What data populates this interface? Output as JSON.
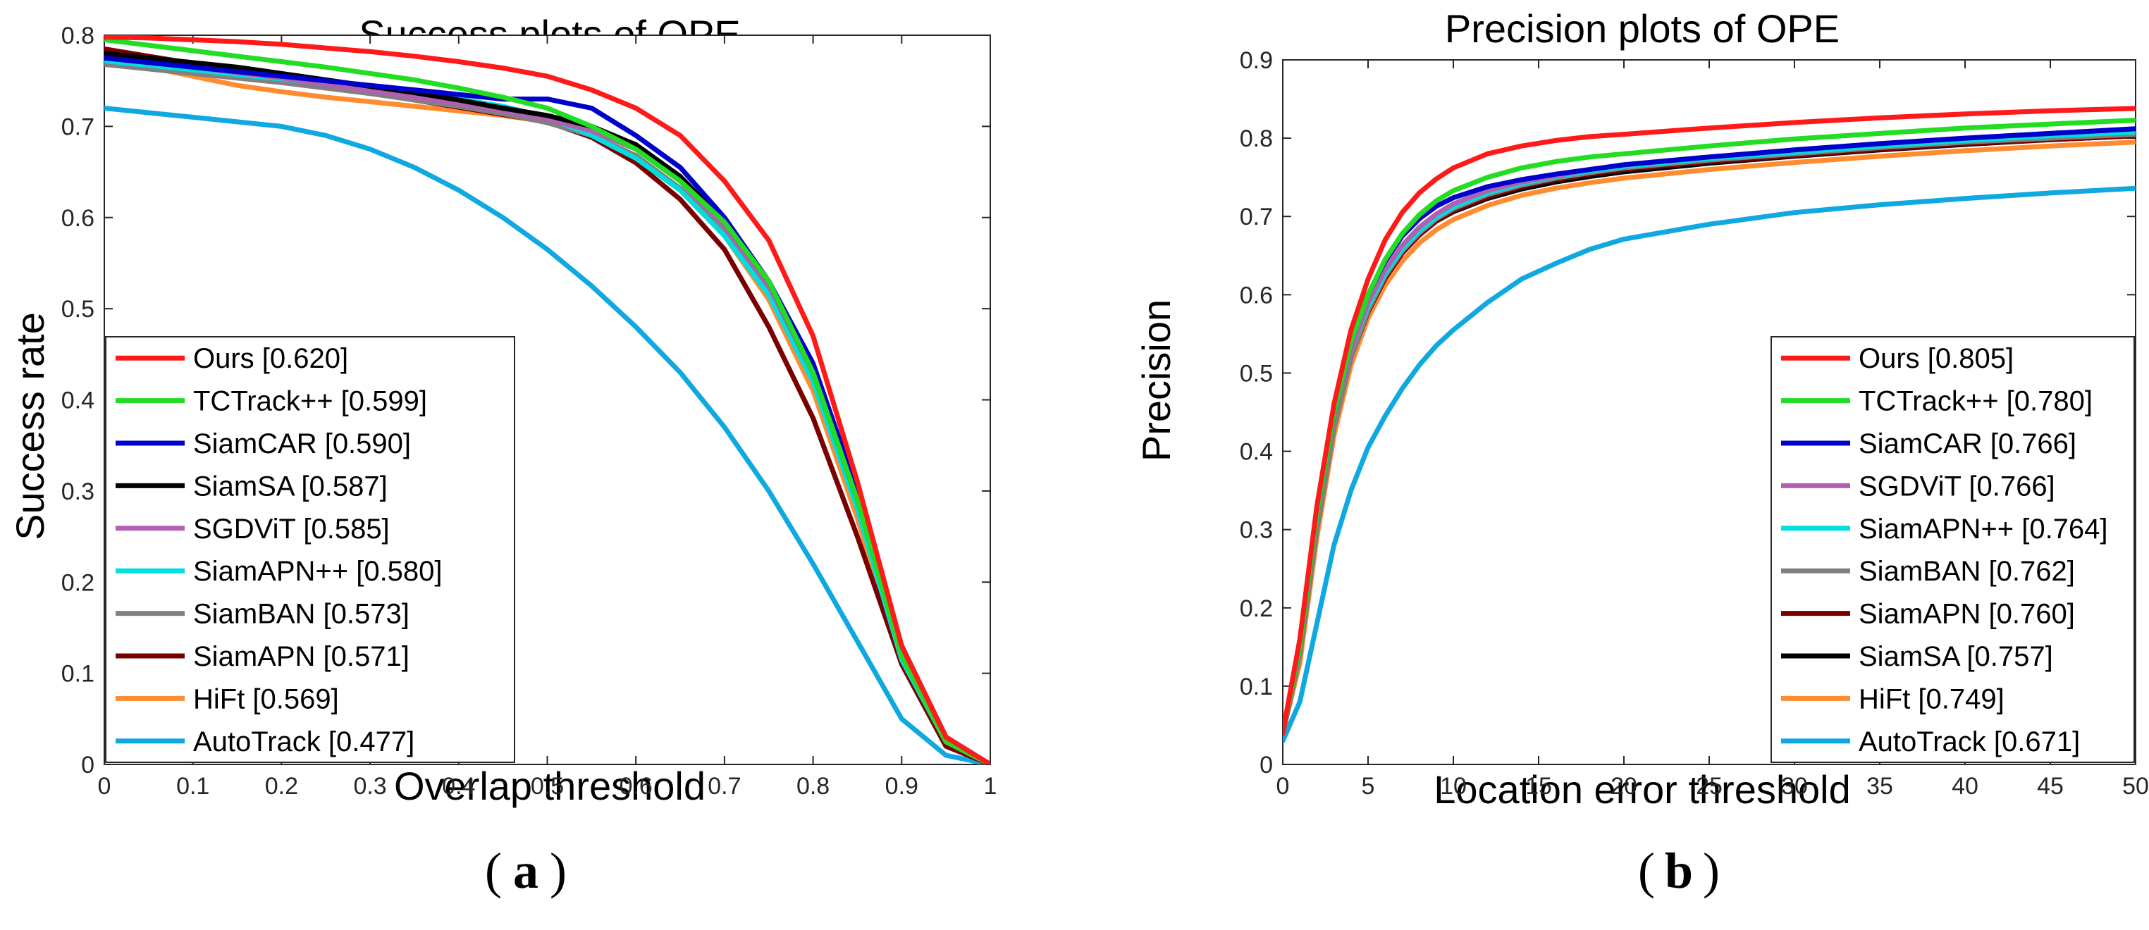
{
  "colors": {
    "Ours": "#ff1a1a",
    "TCTrack++": "#22dd22",
    "SiamCAR": "#0000cc",
    "SiamSA": "#000000",
    "SGDViT": "#b060b0",
    "SiamAPN++": "#00dddd",
    "SiamBAN": "#808080",
    "SiamAPN": "#7a0000",
    "HiFt": "#ff8c30",
    "AutoTrack": "#10a8e0"
  },
  "chart_data": [
    {
      "type": "line",
      "panel_label": "a",
      "title": "Success plots of OPE",
      "xlabel": "Overlap threshold",
      "ylabel": "Success rate",
      "xlim": [
        0,
        1
      ],
      "ylim": [
        0,
        0.8
      ],
      "xticks": [
        "0",
        "0.1",
        "0.2",
        "0.3",
        "0.4",
        "0.5",
        "0.6",
        "0.7",
        "0.8",
        "0.9",
        "1"
      ],
      "yticks": [
        "0",
        "0.1",
        "0.2",
        "0.3",
        "0.4",
        "0.5",
        "0.6",
        "0.7",
        "0.8"
      ],
      "legend_position": "bottom-left",
      "x": [
        0,
        0.05,
        0.1,
        0.15,
        0.2,
        0.25,
        0.3,
        0.35,
        0.4,
        0.45,
        0.5,
        0.55,
        0.6,
        0.65,
        0.7,
        0.75,
        0.8,
        0.85,
        0.9,
        0.95,
        1.0
      ],
      "series": [
        {
          "name": "Ours [0.620]",
          "key": "Ours",
          "values": [
            0.798,
            0.797,
            0.795,
            0.793,
            0.79,
            0.786,
            0.782,
            0.777,
            0.771,
            0.764,
            0.755,
            0.74,
            0.72,
            0.69,
            0.64,
            0.575,
            0.47,
            0.31,
            0.13,
            0.03,
            0.0
          ]
        },
        {
          "name": "TCTrack++ [0.599]",
          "key": "TCTrack++",
          "values": [
            0.795,
            0.789,
            0.783,
            0.777,
            0.771,
            0.765,
            0.758,
            0.751,
            0.742,
            0.732,
            0.72,
            0.7,
            0.675,
            0.64,
            0.595,
            0.53,
            0.43,
            0.29,
            0.12,
            0.025,
            0.0
          ]
        },
        {
          "name": "SiamCAR [0.590]",
          "key": "SiamCAR",
          "values": [
            0.775,
            0.77,
            0.765,
            0.76,
            0.755,
            0.75,
            0.745,
            0.74,
            0.735,
            0.73,
            0.73,
            0.72,
            0.69,
            0.655,
            0.6,
            0.53,
            0.44,
            0.3,
            0.13,
            0.03,
            0.0
          ]
        },
        {
          "name": "SiamSA [0.587]",
          "key": "SiamSA",
          "values": [
            0.78,
            0.775,
            0.77,
            0.765,
            0.758,
            0.751,
            0.744,
            0.737,
            0.729,
            0.72,
            0.712,
            0.7,
            0.68,
            0.645,
            0.595,
            0.53,
            0.43,
            0.29,
            0.13,
            0.03,
            0.0
          ]
        },
        {
          "name": "SGDViT [0.585]",
          "key": "SGDViT",
          "values": [
            0.775,
            0.77,
            0.765,
            0.759,
            0.753,
            0.746,
            0.739,
            0.732,
            0.725,
            0.717,
            0.708,
            0.695,
            0.675,
            0.64,
            0.59,
            0.525,
            0.43,
            0.29,
            0.12,
            0.025,
            0.0
          ]
        },
        {
          "name": "SiamAPN++ [0.580]",
          "key": "SiamAPN++",
          "values": [
            0.772,
            0.767,
            0.762,
            0.757,
            0.752,
            0.747,
            0.742,
            0.736,
            0.73,
            0.722,
            0.71,
            0.69,
            0.665,
            0.63,
            0.58,
            0.515,
            0.42,
            0.28,
            0.115,
            0.025,
            0.0
          ]
        },
        {
          "name": "SiamBAN [0.573]",
          "key": "SiamBAN",
          "values": [
            0.768,
            0.763,
            0.758,
            0.753,
            0.748,
            0.742,
            0.736,
            0.729,
            0.722,
            0.714,
            0.704,
            0.69,
            0.668,
            0.632,
            0.583,
            0.518,
            0.42,
            0.285,
            0.12,
            0.025,
            0.0
          ]
        },
        {
          "name": "SiamAPN [0.571]",
          "key": "SiamAPN",
          "values": [
            0.785,
            0.777,
            0.769,
            0.761,
            0.753,
            0.745,
            0.737,
            0.729,
            0.721,
            0.713,
            0.705,
            0.688,
            0.66,
            0.62,
            0.565,
            0.48,
            0.38,
            0.25,
            0.11,
            0.02,
            0.0
          ]
        },
        {
          "name": "HiFt [0.569]",
          "key": "HiFt",
          "values": [
            0.785,
            0.765,
            0.755,
            0.745,
            0.738,
            0.732,
            0.727,
            0.722,
            0.717,
            0.712,
            0.705,
            0.69,
            0.665,
            0.63,
            0.58,
            0.51,
            0.41,
            0.27,
            0.11,
            0.02,
            0.0
          ]
        },
        {
          "name": "AutoTrack [0.477]",
          "key": "AutoTrack",
          "values": [
            0.72,
            0.715,
            0.71,
            0.705,
            0.7,
            0.69,
            0.675,
            0.655,
            0.63,
            0.6,
            0.565,
            0.525,
            0.48,
            0.43,
            0.37,
            0.3,
            0.22,
            0.135,
            0.05,
            0.01,
            0.0
          ]
        }
      ]
    },
    {
      "type": "line",
      "panel_label": "b",
      "title": "Precision plots of OPE",
      "xlabel": "Location error threshold",
      "ylabel": "Precision",
      "xlim": [
        0,
        50
      ],
      "ylim": [
        0,
        0.9
      ],
      "xticks": [
        "0",
        "5",
        "10",
        "15",
        "20",
        "25",
        "30",
        "35",
        "40",
        "45",
        "50"
      ],
      "yticks": [
        "0",
        "0.1",
        "0.2",
        "0.3",
        "0.4",
        "0.5",
        "0.6",
        "0.7",
        "0.8",
        "0.9"
      ],
      "legend_position": "bottom-right",
      "x": [
        0,
        1,
        2,
        3,
        4,
        5,
        6,
        7,
        8,
        9,
        10,
        12,
        14,
        16,
        18,
        20,
        25,
        30,
        35,
        40,
        45,
        50
      ],
      "series": [
        {
          "name": "Ours [0.805]",
          "key": "Ours",
          "values": [
            0.04,
            0.16,
            0.33,
            0.46,
            0.555,
            0.62,
            0.67,
            0.705,
            0.73,
            0.748,
            0.762,
            0.78,
            0.79,
            0.797,
            0.802,
            0.805,
            0.813,
            0.82,
            0.826,
            0.831,
            0.835,
            0.838
          ]
        },
        {
          "name": "TCTrack++ [0.780]",
          "key": "TCTrack++",
          "values": [
            0.04,
            0.15,
            0.32,
            0.45,
            0.54,
            0.6,
            0.645,
            0.678,
            0.702,
            0.72,
            0.733,
            0.75,
            0.762,
            0.77,
            0.776,
            0.78,
            0.79,
            0.799,
            0.806,
            0.813,
            0.818,
            0.823
          ]
        },
        {
          "name": "SiamCAR [0.766]",
          "key": "SiamCAR",
          "values": [
            0.04,
            0.15,
            0.32,
            0.45,
            0.54,
            0.6,
            0.643,
            0.675,
            0.697,
            0.713,
            0.724,
            0.738,
            0.747,
            0.754,
            0.76,
            0.766,
            0.776,
            0.785,
            0.793,
            0.8,
            0.806,
            0.812
          ]
        },
        {
          "name": "SGDViT [0.766]",
          "key": "SGDViT",
          "values": [
            0.04,
            0.15,
            0.32,
            0.45,
            0.53,
            0.59,
            0.632,
            0.663,
            0.686,
            0.703,
            0.716,
            0.733,
            0.744,
            0.752,
            0.76,
            0.766,
            0.776,
            0.785,
            0.793,
            0.8,
            0.806,
            0.812
          ]
        },
        {
          "name": "SiamAPN++ [0.764]",
          "key": "SiamAPN++",
          "values": [
            0.04,
            0.15,
            0.32,
            0.45,
            0.53,
            0.585,
            0.627,
            0.658,
            0.681,
            0.699,
            0.712,
            0.73,
            0.742,
            0.751,
            0.758,
            0.764,
            0.774,
            0.782,
            0.79,
            0.797,
            0.803,
            0.808
          ]
        },
        {
          "name": "SiamBAN [0.762]",
          "key": "SiamBAN",
          "values": [
            0.04,
            0.14,
            0.3,
            0.43,
            0.52,
            0.58,
            0.624,
            0.656,
            0.679,
            0.697,
            0.71,
            0.728,
            0.74,
            0.749,
            0.756,
            0.762,
            0.772,
            0.78,
            0.788,
            0.795,
            0.8,
            0.805
          ]
        },
        {
          "name": "SiamAPN [0.760]",
          "key": "SiamAPN",
          "values": [
            0.04,
            0.14,
            0.3,
            0.43,
            0.52,
            0.578,
            0.621,
            0.653,
            0.676,
            0.694,
            0.707,
            0.725,
            0.738,
            0.747,
            0.754,
            0.76,
            0.77,
            0.778,
            0.786,
            0.793,
            0.798,
            0.803
          ]
        },
        {
          "name": "SiamSA [0.757]",
          "key": "SiamSA",
          "values": [
            0.04,
            0.15,
            0.31,
            0.44,
            0.53,
            0.585,
            0.625,
            0.655,
            0.677,
            0.694,
            0.706,
            0.723,
            0.735,
            0.744,
            0.751,
            0.757,
            0.768,
            0.777,
            0.785,
            0.792,
            0.798,
            0.803
          ]
        },
        {
          "name": "HiFt [0.749]",
          "key": "HiFt",
          "values": [
            0.04,
            0.13,
            0.29,
            0.42,
            0.51,
            0.57,
            0.612,
            0.643,
            0.666,
            0.683,
            0.696,
            0.714,
            0.727,
            0.736,
            0.743,
            0.749,
            0.76,
            0.769,
            0.777,
            0.784,
            0.79,
            0.795
          ]
        },
        {
          "name": "AutoTrack [0.671]",
          "key": "AutoTrack",
          "values": [
            0.03,
            0.08,
            0.18,
            0.28,
            0.35,
            0.405,
            0.445,
            0.48,
            0.51,
            0.535,
            0.555,
            0.59,
            0.62,
            0.64,
            0.658,
            0.671,
            0.69,
            0.705,
            0.715,
            0.723,
            0.73,
            0.736
          ]
        }
      ]
    }
  ]
}
